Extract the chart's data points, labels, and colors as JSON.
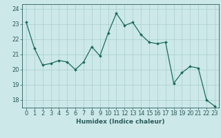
{
  "x": [
    0,
    1,
    2,
    3,
    4,
    5,
    6,
    7,
    8,
    9,
    10,
    11,
    12,
    13,
    14,
    15,
    16,
    17,
    18,
    19,
    20,
    21,
    22,
    23
  ],
  "y": [
    23.1,
    21.4,
    20.3,
    20.4,
    20.6,
    20.5,
    20.0,
    20.5,
    21.5,
    20.9,
    22.4,
    23.7,
    22.9,
    23.1,
    22.3,
    21.8,
    21.7,
    21.8,
    19.1,
    19.8,
    20.2,
    20.1,
    18.0,
    17.6
  ],
  "line_color": "#1a6b5a",
  "marker": "D",
  "marker_size": 2,
  "line_width": 0.9,
  "bg_color": "#cce8e8",
  "grid_color": "#aacece",
  "xlabel": "Humidex (Indice chaleur)",
  "ylim": [
    17.5,
    24.3
  ],
  "yticks": [
    18,
    19,
    20,
    21,
    22,
    23,
    24
  ],
  "xticks": [
    0,
    1,
    2,
    3,
    4,
    5,
    6,
    7,
    8,
    9,
    10,
    11,
    12,
    13,
    14,
    15,
    16,
    17,
    18,
    19,
    20,
    21,
    22,
    23
  ],
  "xlabel_fontsize": 6.5,
  "tick_fontsize": 6,
  "axis_color": "#2a5a5a"
}
